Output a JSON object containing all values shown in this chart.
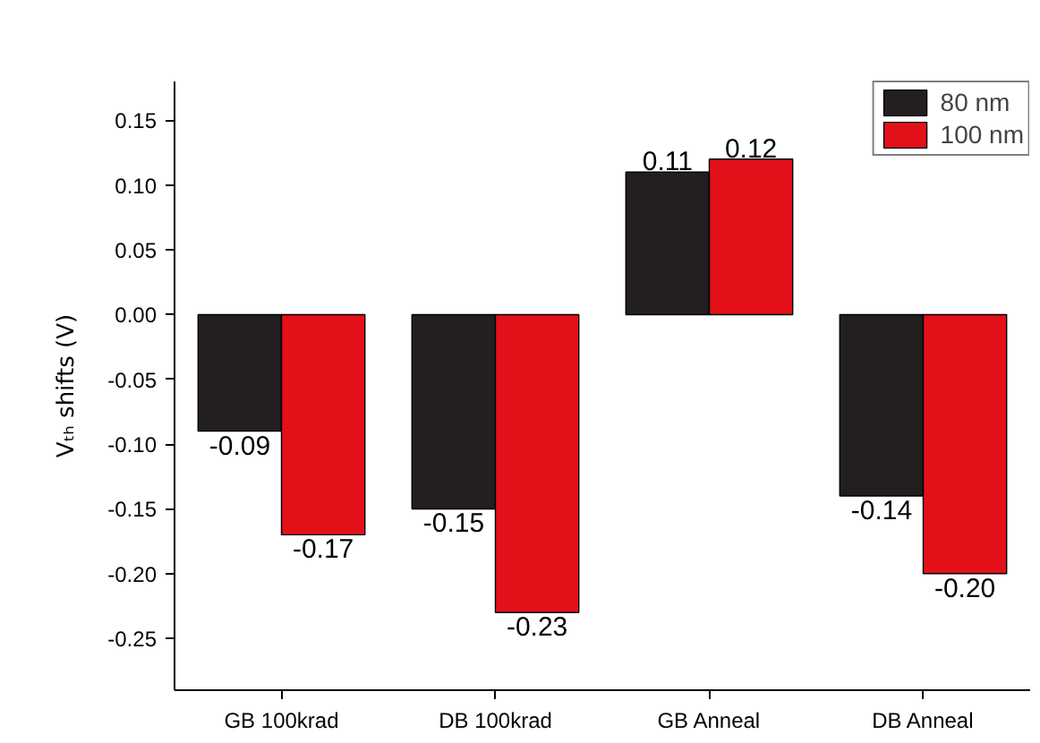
{
  "chart_data": {
    "type": "bar",
    "ylabel": "Vₜₕ shifts (V)",
    "categories": [
      "GB 100krad",
      "DB 100krad",
      "GB Anneal",
      "DB Anneal"
    ],
    "series": [
      {
        "name": "80 nm",
        "color": "#231f20",
        "values": [
          -0.09,
          -0.15,
          0.11,
          -0.14
        ],
        "value_labels": [
          "-0.09",
          "-0.15",
          "0.11",
          "-0.14"
        ]
      },
      {
        "name": "100 nm",
        "color": "#e3101a",
        "values": [
          -0.17,
          -0.23,
          0.12,
          -0.2
        ],
        "value_labels": [
          "-0.17",
          "-0.23",
          "0.12",
          "-0.20"
        ]
      }
    ],
    "ylim": [
      -0.29,
      0.18
    ],
    "yticks": [
      {
        "value": -0.25,
        "label": "-0.25"
      },
      {
        "value": -0.2,
        "label": "-0.20"
      },
      {
        "value": -0.15,
        "label": "-0.15"
      },
      {
        "value": -0.1,
        "label": "-0.10"
      },
      {
        "value": -0.05,
        "label": "-0.05"
      },
      {
        "value": 0,
        "label": "0.00"
      },
      {
        "value": 0.05,
        "label": "0.05"
      },
      {
        "value": 0.1,
        "label": "0.10"
      },
      {
        "value": 0.15,
        "label": "0.15"
      }
    ],
    "data_labels": true,
    "grid": false,
    "legend": "top right"
  }
}
